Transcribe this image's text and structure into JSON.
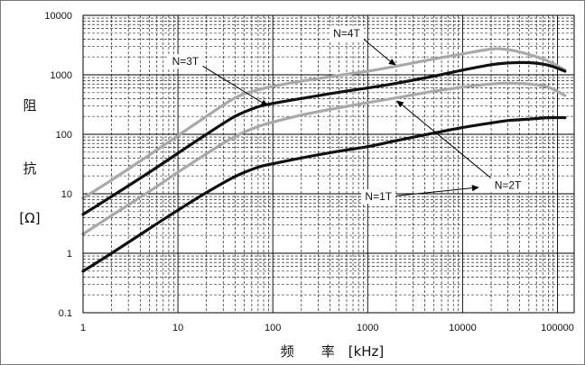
{
  "chart_data": {
    "type": "line",
    "xscale": "log",
    "yscale": "log",
    "xlim": [
      1,
      150000
    ],
    "ylim": [
      0.1,
      10000
    ],
    "grid": true,
    "legend": "none",
    "xlabel": "频　　率　[kHz]",
    "ylabel_chars": [
      "阻",
      "抗",
      "[Ω]"
    ],
    "x_ticks": [
      "1",
      "10",
      "100",
      "1000",
      "10000",
      "100000"
    ],
    "y_ticks": [
      "0.1",
      "1",
      "10",
      "100",
      "1000",
      "10000"
    ],
    "series": [
      {
        "name": "N=4T",
        "color": "#a9a9a9",
        "x": [
          1,
          2,
          5,
          10,
          20,
          40,
          70,
          100,
          200,
          500,
          1000,
          2000,
          5000,
          10000,
          20000,
          30000,
          50000,
          80000,
          120000
        ],
        "y": [
          8.5,
          17,
          45,
          95,
          200,
          410,
          560,
          640,
          780,
          980,
          1150,
          1400,
          1850,
          2250,
          2700,
          2650,
          2200,
          1700,
          1200
        ]
      },
      {
        "name": "N=3T",
        "color": "#111111",
        "x": [
          1,
          2,
          5,
          10,
          20,
          40,
          70,
          100,
          200,
          500,
          1000,
          2000,
          5000,
          10000,
          20000,
          30000,
          50000,
          80000,
          120000
        ],
        "y": [
          4.5,
          9,
          23,
          48,
          100,
          200,
          290,
          330,
          400,
          510,
          600,
          720,
          950,
          1200,
          1480,
          1580,
          1600,
          1450,
          1150
        ]
      },
      {
        "name": "N=2T",
        "color": "#a9a9a9",
        "x": [
          1,
          2,
          5,
          10,
          20,
          40,
          70,
          100,
          200,
          500,
          1000,
          2000,
          5000,
          10000,
          20000,
          30000,
          50000,
          80000,
          120000
        ],
        "y": [
          2.1,
          4.3,
          11,
          23,
          47,
          92,
          135,
          160,
          210,
          280,
          340,
          410,
          530,
          620,
          700,
          720,
          700,
          620,
          450
        ]
      },
      {
        "name": "N=1T",
        "color": "#111111",
        "x": [
          1,
          2,
          5,
          10,
          20,
          40,
          70,
          100,
          200,
          500,
          1000,
          2000,
          5000,
          10000,
          20000,
          30000,
          50000,
          80000,
          120000
        ],
        "y": [
          0.5,
          1.0,
          2.6,
          5.3,
          10.5,
          19.5,
          28,
          32,
          40,
          52,
          62,
          78,
          105,
          130,
          155,
          170,
          180,
          190,
          190
        ]
      }
    ],
    "annotations": [
      {
        "text": "N=4T",
        "label_at": [
          600,
          5000
        ],
        "arrow_to": [
          2000,
          1450
        ]
      },
      {
        "text": "N=3T",
        "label_at": [
          12,
          1680
        ],
        "arrow_to": [
          90,
          300
        ]
      },
      {
        "text": "N=2T",
        "label_at": [
          30000,
          14
        ],
        "arrow_to": [
          2000,
          370
        ]
      },
      {
        "text": "N=1T",
        "label_at": [
          1300,
          9
        ],
        "arrow_to": [
          15000,
          12.8
        ]
      }
    ]
  }
}
